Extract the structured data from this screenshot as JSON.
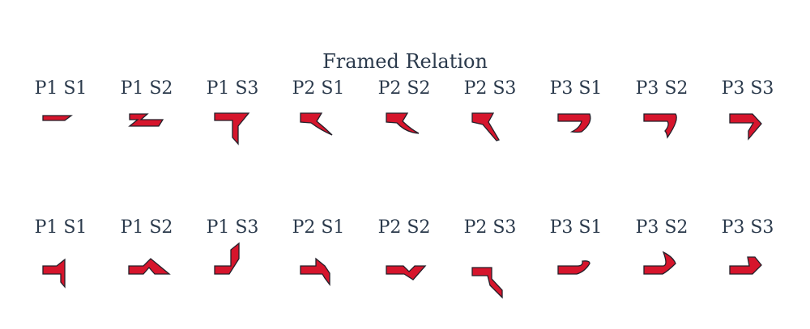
{
  "title": "Framed Relation",
  "colors": {
    "fill": "#d6152c",
    "stroke": "#24202a",
    "text": "#2b3a4c"
  },
  "rows": [
    {
      "cells": [
        {
          "label": "P1 S1",
          "icon": "p1-s1-bar-glyph"
        },
        {
          "label": "P1 S2",
          "icon": "p1-s2-zigzag-glyph"
        },
        {
          "label": "P1 S3",
          "icon": "p1-s3-seven-glyph"
        },
        {
          "label": "P2 S1",
          "icon": "p2-s1-hook-glyph"
        },
        {
          "label": "P2 S2",
          "icon": "p2-s2-hook-glyph"
        },
        {
          "label": "P2 S3",
          "icon": "p2-s3-hook-glyph"
        },
        {
          "label": "P3 S1",
          "icon": "p3-s1-curve-glyph"
        },
        {
          "label": "P3 S2",
          "icon": "p3-s2-curve-glyph"
        },
        {
          "label": "P3 S3",
          "icon": "p3-s3-chevron-glyph"
        }
      ]
    },
    {
      "cells": [
        {
          "label": "P1 S1",
          "icon": "p1-s1-flag-glyph"
        },
        {
          "label": "P1 S2",
          "icon": "p1-s2-peak-glyph"
        },
        {
          "label": "P1 S3",
          "icon": "p1-s3-corner-glyph"
        },
        {
          "label": "P2 S1",
          "icon": "p2-s1-flag-glyph"
        },
        {
          "label": "P2 S2",
          "icon": "p2-s2-valley-glyph"
        },
        {
          "label": "P2 S3",
          "icon": "p2-s3-hook-glyph"
        },
        {
          "label": "P3 S1",
          "icon": "p3-s1-curve-glyph"
        },
        {
          "label": "P3 S2",
          "icon": "p3-s2-curve-glyph"
        },
        {
          "label": "P3 S3",
          "icon": "p3-s3-chevron-glyph"
        }
      ]
    }
  ]
}
